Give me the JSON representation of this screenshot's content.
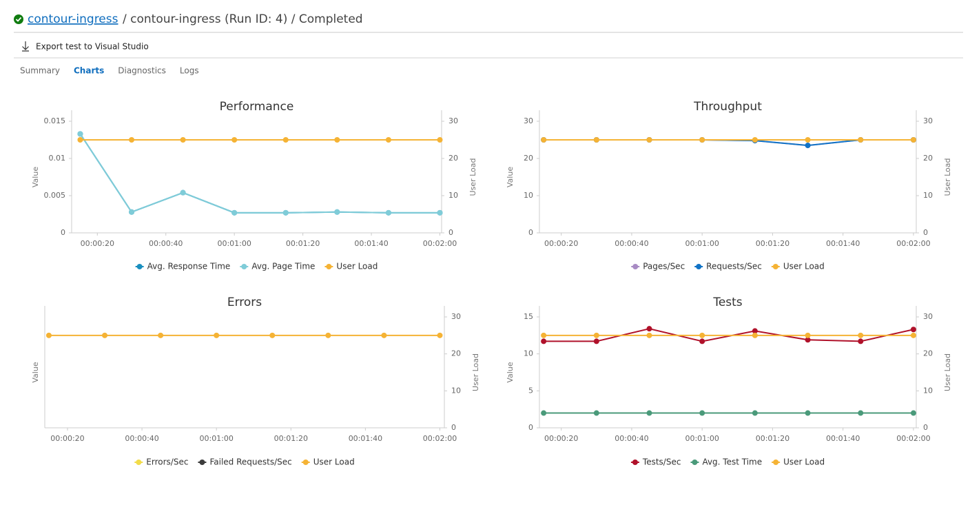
{
  "header": {
    "link": "contour-ingress",
    "title": "/ contour-ingress (Run ID: 4) / Completed"
  },
  "toolbar": {
    "export": "Export test to Visual Studio"
  },
  "tabs": [
    "Summary",
    "Charts",
    "Diagnostics",
    "Logs"
  ],
  "active_tab": 1,
  "chart_data": [
    {
      "type": "line",
      "title": "Performance",
      "y_label": "Value",
      "y2_label": "User Load",
      "x": [
        15,
        30,
        45,
        60,
        75,
        90,
        105,
        120
      ],
      "xlim": [
        12.5,
        120.5
      ],
      "xticks": [
        {
          "value": 20,
          "label": "00:00:20"
        },
        {
          "value": 40,
          "label": "00:00:40"
        },
        {
          "value": 60,
          "label": "00:01:00"
        },
        {
          "value": 80,
          "label": "00:01:20"
        },
        {
          "value": 100,
          "label": "00:01:40"
        },
        {
          "value": 120,
          "label": "00:02:00"
        }
      ],
      "ylim": [
        0,
        0.015
      ],
      "yticks": [
        0,
        0.005,
        0.01,
        0.015
      ],
      "y2lim": [
        0,
        30
      ],
      "y2ticks": [
        0,
        10,
        20,
        30
      ],
      "series": [
        {
          "name": "Avg. Response Time",
          "color": "#1a8fbf",
          "values": [
            0.0133,
            0.0028,
            0.0054,
            0.0027,
            0.0027,
            0.0028,
            0.0027,
            0.0027
          ]
        },
        {
          "name": "Avg. Page Time",
          "color": "#7fccd8",
          "values": [
            0.0133,
            0.0028,
            0.0054,
            0.0027,
            0.0027,
            0.0028,
            0.0027,
            0.0027
          ]
        },
        {
          "name": "User Load",
          "color": "#f5b335",
          "axis": "y2",
          "values": [
            25,
            25,
            25,
            25,
            25,
            25,
            25,
            25
          ]
        }
      ]
    },
    {
      "type": "line",
      "title": "Throughput",
      "y_label": "Value",
      "y2_label": "User Load",
      "x": [
        15,
        30,
        45,
        60,
        75,
        90,
        105,
        120
      ],
      "xlim": [
        13.8,
        120.8
      ],
      "xticks": [
        {
          "value": 20,
          "label": "00:00:20"
        },
        {
          "value": 40,
          "label": "00:00:40"
        },
        {
          "value": 60,
          "label": "00:01:00"
        },
        {
          "value": 80,
          "label": "00:01:20"
        },
        {
          "value": 100,
          "label": "00:01:40"
        },
        {
          "value": 120,
          "label": "00:02:00"
        }
      ],
      "ylim": [
        0,
        30
      ],
      "yticks": [
        0,
        10,
        20,
        30
      ],
      "y2lim": [
        0,
        30
      ],
      "y2ticks": [
        0,
        10,
        20,
        30
      ],
      "series": [
        {
          "name": "Pages/Sec",
          "color": "#a88bc4",
          "values": [
            25,
            25,
            25,
            25,
            24.8,
            23.5,
            25,
            25
          ]
        },
        {
          "name": "Requests/Sec",
          "color": "#1173c6",
          "values": [
            25,
            25,
            25,
            25,
            24.8,
            23.5,
            25,
            25
          ]
        },
        {
          "name": "User Load",
          "color": "#f5b335",
          "axis": "y2",
          "values": [
            25,
            25,
            25,
            25,
            25,
            25,
            25,
            25
          ]
        }
      ]
    },
    {
      "type": "line",
      "title": "Errors",
      "y_label": "Value",
      "y2_label": "User Load",
      "x": [
        15,
        30,
        45,
        60,
        75,
        90,
        105,
        120
      ],
      "xlim": [
        13.9,
        121.2
      ],
      "xticks": [
        {
          "value": 20,
          "label": "00:00:20"
        },
        {
          "value": 40,
          "label": "00:00:40"
        },
        {
          "value": 60,
          "label": "00:01:00"
        },
        {
          "value": 80,
          "label": "00:01:20"
        },
        {
          "value": 100,
          "label": "00:01:40"
        },
        {
          "value": 120,
          "label": "00:02:00"
        }
      ],
      "y2lim": [
        0,
        30
      ],
      "y2ticks": [
        0,
        10,
        20,
        30
      ],
      "series": [
        {
          "name": "Errors/Sec",
          "color": "#f2dc4a",
          "values": [
            null,
            null,
            null,
            null,
            null,
            null,
            null,
            null
          ]
        },
        {
          "name": "Failed Requests/Sec",
          "color": "#3c3c3c",
          "values": [
            null,
            null,
            null,
            null,
            null,
            null,
            null,
            null
          ]
        },
        {
          "name": "User Load",
          "color": "#f5b335",
          "axis": "y2",
          "values": [
            25,
            25,
            25,
            25,
            25,
            25,
            25,
            25
          ]
        }
      ]
    },
    {
      "type": "line",
      "title": "Tests",
      "y_label": "Value",
      "y2_label": "User Load",
      "x": [
        15,
        30,
        45,
        60,
        75,
        90,
        105,
        120
      ],
      "xlim": [
        13.8,
        120.8
      ],
      "xticks": [
        {
          "value": 20,
          "label": "00:00:20"
        },
        {
          "value": 40,
          "label": "00:00:40"
        },
        {
          "value": 60,
          "label": "00:01:00"
        },
        {
          "value": 80,
          "label": "00:01:20"
        },
        {
          "value": 100,
          "label": "00:01:40"
        },
        {
          "value": 120,
          "label": "00:02:00"
        }
      ],
      "ylim": [
        0,
        15
      ],
      "yticks": [
        0,
        5,
        10,
        15
      ],
      "y2lim": [
        0,
        30
      ],
      "y2ticks": [
        0,
        10,
        20,
        30
      ],
      "series": [
        {
          "name": "Tests/Sec",
          "color": "#b0112a",
          "values": [
            11.7,
            11.7,
            13.4,
            11.7,
            13.1,
            11.9,
            11.7,
            13.3
          ]
        },
        {
          "name": "Avg. Test Time",
          "color": "#4a9a7a",
          "values": [
            2.0,
            2.0,
            2.0,
            2.0,
            2.0,
            2.0,
            2.0,
            2.0
          ]
        },
        {
          "name": "User Load",
          "color": "#f5b335",
          "axis": "y2",
          "values": [
            25,
            25,
            25,
            25,
            25,
            25,
            25,
            25
          ]
        }
      ]
    }
  ]
}
